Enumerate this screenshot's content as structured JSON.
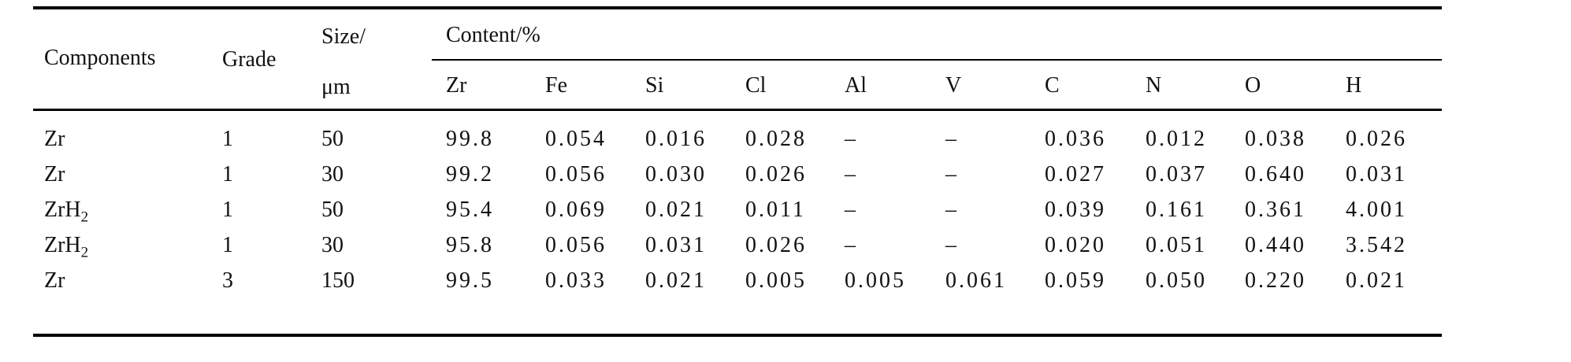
{
  "headers": {
    "components": "Components",
    "grade": "Grade",
    "size_line1": "Size/",
    "size_line2": "μm",
    "content": "Content/%",
    "elements": [
      "Zr",
      "Fe",
      "Si",
      "Cl",
      "Al",
      "V",
      "C",
      "N",
      "O",
      "H"
    ]
  },
  "rows": [
    {
      "component": "Zr",
      "component_sub": "",
      "grade": "1",
      "size": "50",
      "values": [
        "99.8",
        "0.054",
        "0.016",
        "0.028",
        "–",
        "–",
        "0.036",
        "0.012",
        "0.038",
        "0.026"
      ]
    },
    {
      "component": "Zr",
      "component_sub": "",
      "grade": "1",
      "size": "30",
      "values": [
        "99.2",
        "0.056",
        "0.030",
        "0.026",
        "–",
        "–",
        "0.027",
        "0.037",
        "0.640",
        "0.031"
      ]
    },
    {
      "component": "ZrH",
      "component_sub": "2",
      "grade": "1",
      "size": "50",
      "values": [
        "95.4",
        "0.069",
        "0.021",
        "0.011",
        "–",
        "–",
        "0.039",
        "0.161",
        "0.361",
        "4.001"
      ]
    },
    {
      "component": "ZrH",
      "component_sub": "2",
      "grade": "1",
      "size": "30",
      "values": [
        "95.8",
        "0.056",
        "0.031",
        "0.026",
        "–",
        "–",
        "0.020",
        "0.051",
        "0.440",
        "3.542"
      ]
    },
    {
      "component": "Zr",
      "component_sub": "",
      "grade": "3",
      "size": "150",
      "values": [
        "99.5",
        "0.033",
        "0.021",
        "0.005",
        "0.005",
        "0.061",
        "0.059",
        "0.050",
        "0.220",
        "0.021"
      ]
    }
  ]
}
